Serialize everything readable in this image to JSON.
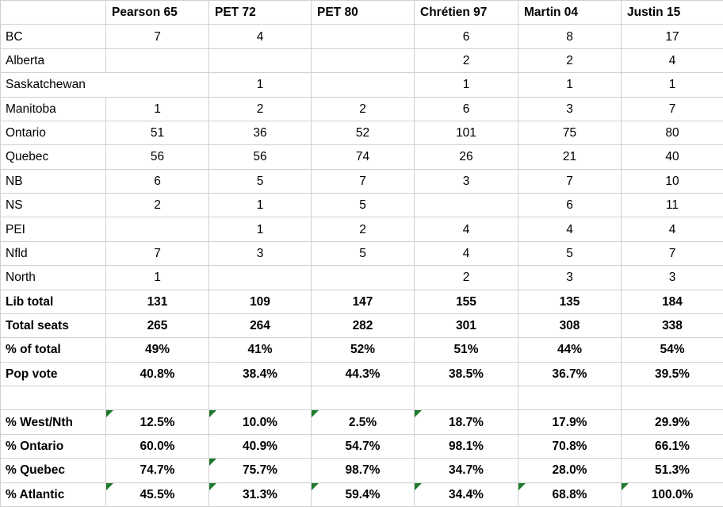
{
  "colors": {
    "gridline": "#d0d0d0",
    "error_indicator_green": "#1f7a2d"
  },
  "table": {
    "corner_label": "",
    "columns": [
      "Pearson 65",
      "PET 72",
      "PET 80",
      "Chrétien 97",
      "Martin 04",
      "Justin 15"
    ],
    "rows": [
      {
        "label": "BC",
        "bold": false,
        "values": [
          "7",
          "4",
          "",
          "6",
          "8",
          "17"
        ],
        "flags": [
          0,
          0,
          0,
          0,
          0,
          0
        ]
      },
      {
        "label": "Alberta",
        "bold": false,
        "values": [
          "",
          "",
          "",
          "2",
          "2",
          "4"
        ],
        "flags": [
          0,
          0,
          0,
          0,
          0,
          0
        ]
      },
      {
        "label": "Saskatchewan",
        "bold": false,
        "overflow": true,
        "values": [
          "",
          "1",
          "",
          "1",
          "1",
          "1"
        ],
        "flags": [
          0,
          0,
          0,
          0,
          0,
          0
        ]
      },
      {
        "label": "Manitoba",
        "bold": false,
        "values": [
          "1",
          "2",
          "2",
          "6",
          "3",
          "7"
        ],
        "flags": [
          0,
          0,
          0,
          0,
          0,
          0
        ]
      },
      {
        "label": "Ontario",
        "bold": false,
        "values": [
          "51",
          "36",
          "52",
          "101",
          "75",
          "80"
        ],
        "flags": [
          0,
          0,
          0,
          0,
          0,
          0
        ]
      },
      {
        "label": "Quebec",
        "bold": false,
        "values": [
          "56",
          "56",
          "74",
          "26",
          "21",
          "40"
        ],
        "flags": [
          0,
          0,
          0,
          0,
          0,
          0
        ]
      },
      {
        "label": "NB",
        "bold": false,
        "values": [
          "6",
          "5",
          "7",
          "3",
          "7",
          "10"
        ],
        "flags": [
          0,
          0,
          0,
          0,
          0,
          0
        ]
      },
      {
        "label": "NS",
        "bold": false,
        "values": [
          "2",
          "1",
          "5",
          "",
          "6",
          "11"
        ],
        "flags": [
          0,
          0,
          0,
          0,
          0,
          0
        ]
      },
      {
        "label": "PEI",
        "bold": false,
        "values": [
          "",
          "1",
          "2",
          "4",
          "4",
          "4"
        ],
        "flags": [
          0,
          0,
          0,
          0,
          0,
          0
        ]
      },
      {
        "label": "Nfld",
        "bold": false,
        "values": [
          "7",
          "3",
          "5",
          "4",
          "5",
          "7"
        ],
        "flags": [
          0,
          0,
          0,
          0,
          0,
          0
        ]
      },
      {
        "label": "North",
        "bold": false,
        "values": [
          "1",
          "",
          "",
          "2",
          "3",
          "3"
        ],
        "flags": [
          0,
          0,
          0,
          0,
          0,
          0
        ]
      },
      {
        "label": "Lib total",
        "bold": true,
        "values": [
          "131",
          "109",
          "147",
          "155",
          "135",
          "184"
        ],
        "flags": [
          0,
          0,
          0,
          0,
          0,
          0
        ]
      },
      {
        "label": "Total seats",
        "bold": true,
        "values": [
          "265",
          "264",
          "282",
          "301",
          "308",
          "338"
        ],
        "flags": [
          0,
          0,
          0,
          0,
          0,
          0
        ]
      },
      {
        "label": "% of total",
        "bold": true,
        "values": [
          "49%",
          "41%",
          "52%",
          "51%",
          "44%",
          "54%"
        ],
        "flags": [
          0,
          0,
          0,
          0,
          0,
          0
        ]
      },
      {
        "label": "Pop vote",
        "bold": true,
        "values": [
          "40.8%",
          "38.4%",
          "44.3%",
          "38.5%",
          "36.7%",
          "39.5%"
        ],
        "flags": [
          0,
          0,
          0,
          0,
          0,
          0
        ]
      },
      {
        "label": "",
        "bold": false,
        "values": [
          "",
          "",
          "",
          "",
          "",
          ""
        ],
        "flags": [
          0,
          0,
          0,
          0,
          0,
          0
        ]
      },
      {
        "label": "% West/Nth",
        "bold": true,
        "values": [
          "12.5%",
          "10.0%",
          "2.5%",
          "18.7%",
          "17.9%",
          "29.9%"
        ],
        "flags": [
          1,
          1,
          1,
          1,
          0,
          0
        ]
      },
      {
        "label": "% Ontario",
        "bold": true,
        "values": [
          "60.0%",
          "40.9%",
          "54.7%",
          "98.1%",
          "70.8%",
          "66.1%"
        ],
        "flags": [
          0,
          0,
          0,
          0,
          0,
          0
        ]
      },
      {
        "label": "% Quebec",
        "bold": true,
        "values": [
          "74.7%",
          "75.7%",
          "98.7%",
          "34.7%",
          "28.0%",
          "51.3%"
        ],
        "flags": [
          0,
          1,
          0,
          0,
          0,
          0
        ]
      },
      {
        "label": "% Atlantic",
        "bold": true,
        "values": [
          "45.5%",
          "31.3%",
          "59.4%",
          "34.4%",
          "68.8%",
          "100.0%"
        ],
        "flags": [
          1,
          1,
          1,
          1,
          1,
          1
        ]
      }
    ]
  }
}
